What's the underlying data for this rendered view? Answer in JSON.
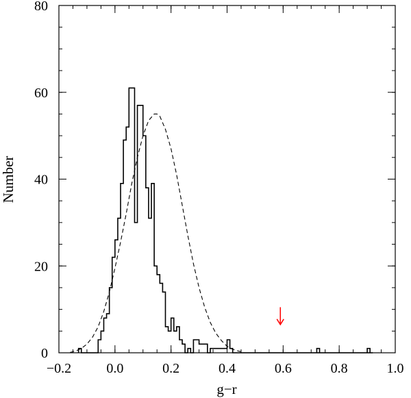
{
  "chart_data": {
    "type": "histogram",
    "title": "",
    "xlabel": "g−r",
    "ylabel": "Number",
    "xlim": [
      -0.2,
      1.0
    ],
    "ylim": [
      0,
      80
    ],
    "x_ticks": [
      -0.2,
      0.0,
      0.2,
      0.4,
      0.6,
      0.8,
      1.0
    ],
    "x_tick_labels": [
      "−0.2",
      "0.0",
      "0.2",
      "0.4",
      "0.6",
      "0.8",
      "1.0"
    ],
    "y_ticks": [
      0,
      20,
      40,
      60,
      80
    ],
    "y_tick_labels": [
      "0",
      "20",
      "40",
      "60",
      "80"
    ],
    "grid": false,
    "bins": {
      "left_edges": [
        -0.13,
        -0.12,
        -0.11,
        -0.1,
        -0.09,
        -0.08,
        -0.07,
        -0.06,
        -0.05,
        -0.04,
        -0.03,
        -0.02,
        -0.01,
        0.0,
        0.01,
        0.02,
        0.03,
        0.04,
        0.05,
        0.06,
        0.07,
        0.08,
        0.09,
        0.1,
        0.11,
        0.12,
        0.13,
        0.14,
        0.15,
        0.16,
        0.17,
        0.18,
        0.19,
        0.2,
        0.21,
        0.22,
        0.23,
        0.24,
        0.25,
        0.26,
        0.27,
        0.28,
        0.29,
        0.3,
        0.31,
        0.32,
        0.33,
        0.34,
        0.35,
        0.36,
        0.37,
        0.38,
        0.39,
        0.4,
        0.41,
        0.42,
        0.43,
        0.44,
        0.45,
        0.46,
        0.47,
        0.48,
        0.49,
        0.5,
        0.51,
        0.52,
        0.53,
        0.54,
        0.55,
        0.56,
        0.57,
        0.58,
        0.59,
        0.6,
        0.61,
        0.62,
        0.63,
        0.64,
        0.65,
        0.66,
        0.67,
        0.68,
        0.69,
        0.7,
        0.71,
        0.72,
        0.73,
        0.74,
        0.75,
        0.76,
        0.77,
        0.78,
        0.79,
        0.8,
        0.81,
        0.82,
        0.83,
        0.84,
        0.85,
        0.86,
        0.87,
        0.88,
        0.89,
        0.9,
        0.91
      ],
      "width": 0.01,
      "counts": [
        1,
        0,
        0,
        0,
        0,
        0,
        0,
        3,
        5,
        8,
        9,
        15,
        22,
        26,
        31,
        39,
        49,
        52,
        61,
        61,
        30,
        57,
        57,
        50,
        38,
        31,
        39,
        20,
        18,
        16,
        14,
        6,
        5,
        8,
        5,
        6,
        3,
        2,
        0,
        1,
        0,
        3,
        3,
        2,
        2,
        2,
        0,
        1,
        1,
        1,
        1,
        1,
        1,
        3,
        1,
        0,
        0,
        0,
        0,
        0,
        0,
        0,
        0,
        0,
        0,
        0,
        0,
        0,
        0,
        0,
        0,
        0,
        0,
        0,
        0,
        0,
        0,
        0,
        0,
        0,
        0,
        0,
        0,
        0,
        0,
        0,
        0,
        0,
        0,
        0,
        0,
        0,
        0,
        0,
        0,
        0,
        0,
        0,
        0,
        0,
        0,
        0,
        0,
        0,
        0
      ],
      "extra_counts": [
        {
          "x": 0.72,
          "count": 1
        },
        {
          "x": 0.9,
          "count": 1
        }
      ]
    },
    "series": [
      {
        "type": "line",
        "style": "dashed",
        "color": "#000000",
        "x": [
          -0.16,
          -0.14,
          -0.12,
          -0.1,
          -0.08,
          -0.06,
          -0.04,
          -0.02,
          0.0,
          0.02,
          0.04,
          0.06,
          0.08,
          0.1,
          0.12,
          0.14,
          0.15,
          0.16,
          0.18,
          0.2,
          0.22,
          0.24,
          0.26,
          0.28,
          0.3,
          0.32,
          0.34,
          0.36,
          0.38,
          0.4,
          0.42,
          0.44,
          0.46
        ],
        "y": [
          0.1,
          0.4,
          1.0,
          2.0,
          3.6,
          6.0,
          9.5,
          14,
          19.5,
          25.5,
          32,
          39,
          45,
          50,
          53.5,
          55,
          55,
          54.5,
          51.5,
          47,
          41,
          34,
          27,
          20.5,
          15,
          10.5,
          7,
          4.5,
          2.8,
          1.5,
          0.8,
          0.4,
          0.1
        ]
      }
    ],
    "annotations": [
      {
        "type": "arrow",
        "direction": "down",
        "x": 0.59,
        "y_top": 10.5,
        "y_bottom": 6.5,
        "color": "#ff0000"
      }
    ]
  }
}
